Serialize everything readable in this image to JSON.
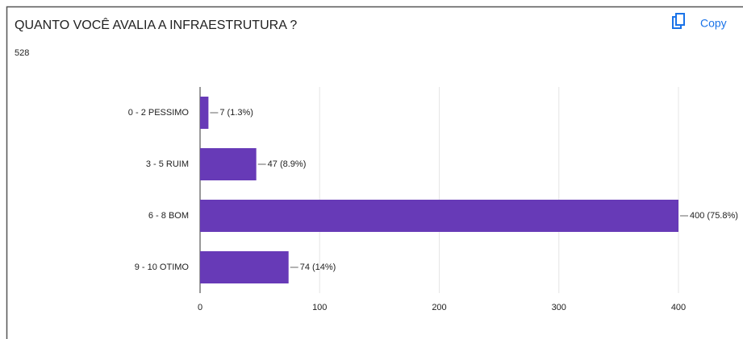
{
  "copy_label": "Copy",
  "chart_data": {
    "type": "barh",
    "title": "QUANTO VOCÊ AVALIA A INFRAESTRUTURA ?",
    "subtitle": "528",
    "categories": [
      "0 - 2 PESSIMO",
      "3 - 5 RUIM",
      "6 - 8 BOM",
      "9 - 10 OTIMO"
    ],
    "values": [
      7,
      47,
      400,
      74
    ],
    "value_labels": [
      "7 (1.3%)",
      "47 (8.9%)",
      "400 (75.8%)",
      "74 (14%)"
    ],
    "color": "#673ab7",
    "xlim": [
      0,
      400
    ],
    "xticks": [
      0,
      100,
      200,
      300,
      400
    ],
    "grid": true
  }
}
